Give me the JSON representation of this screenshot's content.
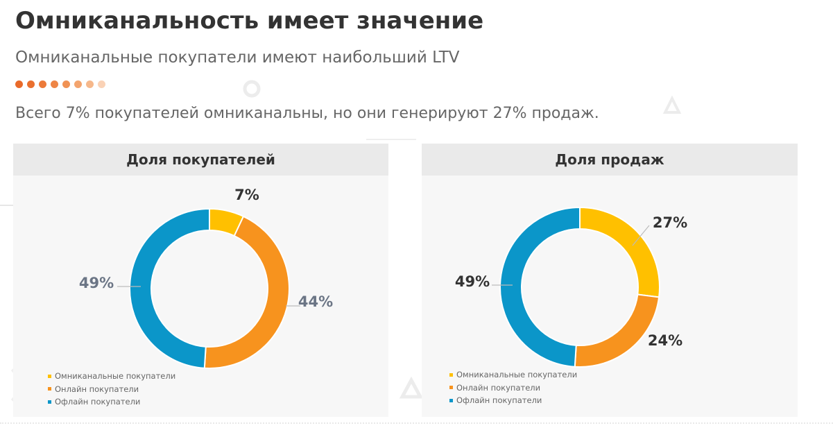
{
  "slide": {
    "title": "Омниканальность имеет значение",
    "subtitle": "Омниканальные покупатели имеют наибольший LTV",
    "lead": "Всего 7% покупателей омниканальны, но они генерируют 27% продаж."
  },
  "colors": {
    "omni": "#ffc000",
    "online": "#f7931e",
    "offline": "#0b96c9",
    "dots": [
      "#e96a2a",
      "#ea702f",
      "#ec7a3a",
      "#ee8546",
      "#f09254",
      "#f3a46e",
      "#f6b88b",
      "#fad2b6"
    ]
  },
  "chart_data": [
    {
      "type": "pie",
      "title": "Доля покупателей",
      "categories": [
        "Омниканальные покупатели",
        "Онлайн покупатели",
        "Офлайн покупатели"
      ],
      "values": [
        7,
        44,
        49
      ],
      "data_labels": [
        "7%",
        "44%",
        "49%"
      ],
      "legend": "bottom-left"
    },
    {
      "type": "pie",
      "title": "Доля продаж",
      "categories": [
        "Омниканальные покупатели",
        "Онлайн покупатели",
        "Офлайн покупатели"
      ],
      "values": [
        27,
        24,
        49
      ],
      "data_labels": [
        "27%",
        "24%",
        "49%"
      ],
      "legend": "bottom-left"
    }
  ]
}
